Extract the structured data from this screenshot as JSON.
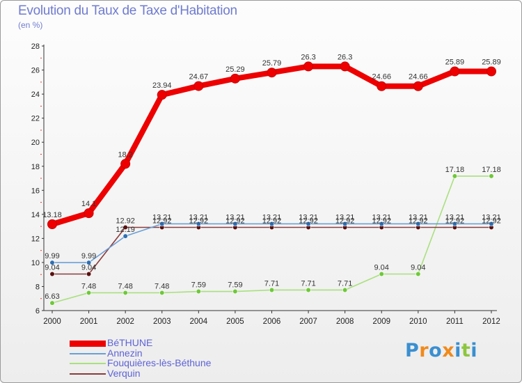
{
  "chart_data": {
    "type": "line",
    "title": "Evolution du Taux de Taxe d'Habitation",
    "ylabel": "(en %)",
    "xlabel": "",
    "categories": [
      "2000",
      "2001",
      "2002",
      "2003",
      "2004",
      "2005",
      "2006",
      "2007",
      "2008",
      "2009",
      "2010",
      "2011",
      "2012"
    ],
    "ylim": [
      6,
      28
    ],
    "yticks": [
      6,
      8,
      10,
      12,
      14,
      16,
      18,
      20,
      22,
      24,
      26,
      28
    ],
    "series": [
      {
        "name": "BéTHUNE",
        "color": "#ee0000",
        "marker": "#ee0000",
        "values": [
          13.18,
          14.1,
          18.2,
          23.94,
          24.67,
          25.29,
          25.79,
          26.3,
          26.3,
          24.66,
          24.66,
          25.89,
          25.89
        ],
        "labels": [
          "13.18",
          "14.1",
          "18.2",
          "23.94",
          "24.67",
          "25.29",
          "25.79",
          "26.3",
          "26.3",
          "24.66",
          "24.66",
          "25.89",
          "25.89"
        ]
      },
      {
        "name": "Annezin",
        "color": "#6a9fd6",
        "marker": "#2f6fb3",
        "values": [
          9.99,
          9.99,
          12.19,
          13.21,
          13.21,
          13.21,
          13.21,
          13.21,
          13.21,
          13.21,
          13.21,
          13.21,
          13.21
        ],
        "labels": [
          "9.99",
          "9.99",
          "12.19",
          "13.21",
          "13.21",
          "13.21",
          "13.21",
          "13.21",
          "13.21",
          "13.21",
          "13.21",
          "13.21",
          "13.21"
        ]
      },
      {
        "name": "Fouquières-lès-Béthune",
        "color": "#a9e07e",
        "marker": "#6fc83a",
        "values": [
          6.63,
          7.48,
          7.48,
          7.48,
          7.59,
          7.59,
          7.71,
          7.71,
          7.71,
          9.04,
          9.04,
          17.18,
          17.18
        ],
        "labels": [
          "6.63",
          "7.48",
          "7.48",
          "7.48",
          "7.59",
          "7.59",
          "7.71",
          "7.71",
          "7.71",
          "9.04",
          "9.04",
          "17.18",
          "17.18"
        ]
      },
      {
        "name": "Verquin",
        "color": "#8b3b3b",
        "marker": "#5a1010",
        "values": [
          9.04,
          9.04,
          12.92,
          12.92,
          12.92,
          12.92,
          12.92,
          12.92,
          12.92,
          12.92,
          12.92,
          12.92,
          12.92
        ],
        "labels": [
          "9.04",
          "9.04",
          "12.92",
          "12.92",
          "12.92",
          "12.92",
          "12.92",
          "12.92",
          "12.92",
          "12.92",
          "12.92",
          "12.92",
          "12.92"
        ]
      }
    ],
    "legend_position": "bottom-left"
  },
  "logo": {
    "letters": [
      "P",
      "r",
      "o",
      "x",
      "i",
      "t",
      "i"
    ],
    "colors": [
      "#3a8fd0",
      "#f08a1c",
      "#3a8fd0",
      "#f08a1c",
      "#3a8fd0",
      "#8cc63f",
      "#3a8fd0"
    ]
  }
}
